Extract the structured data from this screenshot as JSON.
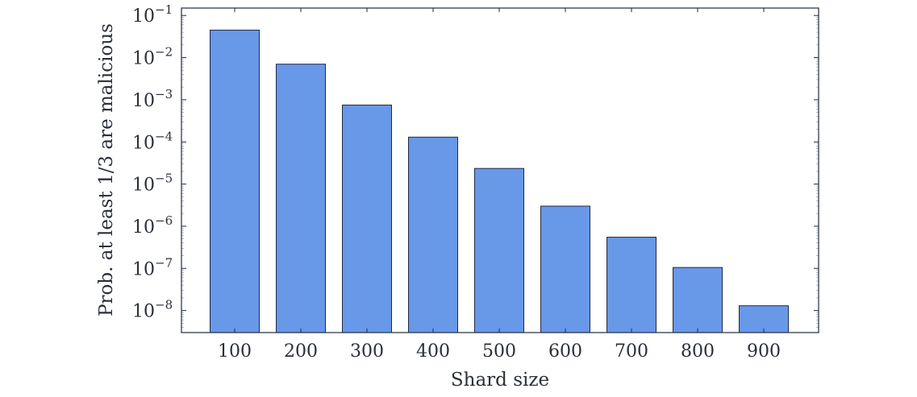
{
  "chart_data": {
    "type": "bar",
    "title": "",
    "xlabel": "Shard size",
    "ylabel": "Prob. at least 1/3 are malicious",
    "yscale": "log",
    "ylim": [
      3e-09,
      0.15
    ],
    "categories": [
      "100",
      "200",
      "300",
      "400",
      "500",
      "600",
      "700",
      "800",
      "900"
    ],
    "values": [
      0.045,
      0.007,
      0.00075,
      0.00013,
      2.35e-05,
      3e-06,
      5.5e-07,
      1.05e-07,
      1.3e-08
    ],
    "y_ticks": [
      {
        "value": 1e-08,
        "base": "10",
        "exp": "−8"
      },
      {
        "value": 1e-07,
        "base": "10",
        "exp": "−7"
      },
      {
        "value": 1e-06,
        "base": "10",
        "exp": "−6"
      },
      {
        "value": 1e-05,
        "base": "10",
        "exp": "−5"
      },
      {
        "value": 0.0001,
        "base": "10",
        "exp": "−4"
      },
      {
        "value": 0.001,
        "base": "10",
        "exp": "−3"
      },
      {
        "value": 0.01,
        "base": "10",
        "exp": "−2"
      },
      {
        "value": 0.1,
        "base": "10",
        "exp": "−1"
      }
    ],
    "colors": {
      "bar": "#6898e8",
      "axis": "#1f2a44"
    },
    "grid": false
  }
}
